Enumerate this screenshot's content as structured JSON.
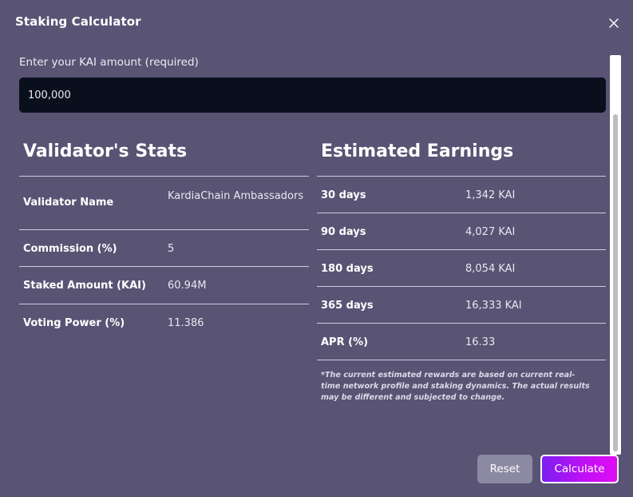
{
  "modal": {
    "title": "Staking Calculator",
    "close_icon": "close-icon"
  },
  "amount": {
    "label": "Enter your KAI amount (required)",
    "value": "100,000"
  },
  "validator_stats": {
    "title": "Validator's Stats",
    "rows": [
      {
        "key": "Validator Name",
        "value": "KardiaChain Ambassadors"
      },
      {
        "key": "Commission (%)",
        "value": "5"
      },
      {
        "key": "Staked Amount (KAI)",
        "value": "60.94M"
      },
      {
        "key": "Voting Power (%)",
        "value": "11.386"
      }
    ]
  },
  "estimated_earnings": {
    "title": "Estimated Earnings",
    "rows": [
      {
        "key": "30 days",
        "value": "1,342 KAI"
      },
      {
        "key": "90 days",
        "value": "4,027 KAI"
      },
      {
        "key": "180 days",
        "value": "8,054 KAI"
      },
      {
        "key": "365 days",
        "value": "16,333 KAI"
      },
      {
        "key": "APR (%)",
        "value": "16.33"
      }
    ],
    "note": "*The current estimated rewards are based on current real-time network profile and staking dynamics. The actual results may be different and subjected to change."
  },
  "buttons": {
    "reset": "Reset",
    "calculate": "Calculate"
  },
  "colors": {
    "background": "#595374",
    "input_bg": "#0a0f1e",
    "accent": "#b416f2"
  }
}
